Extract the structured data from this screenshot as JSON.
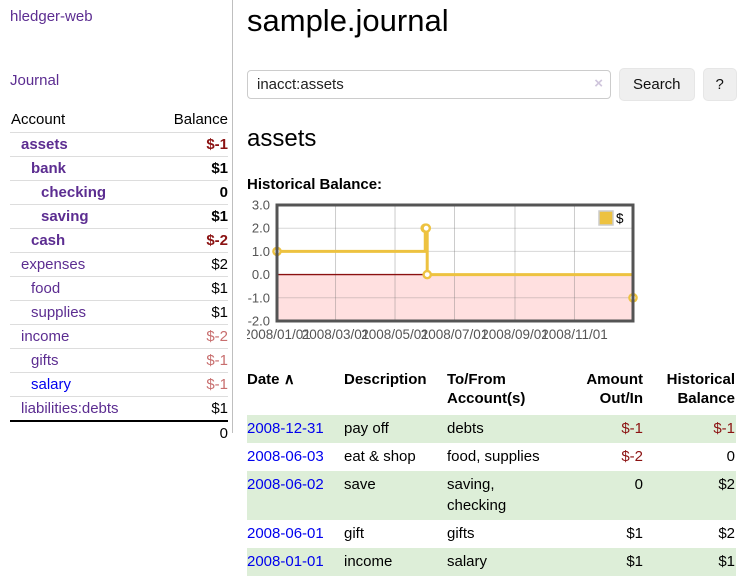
{
  "app": {
    "brand": "hledger-web"
  },
  "nav": {
    "journal": "Journal"
  },
  "sidebar": {
    "headers": {
      "account": "Account",
      "balance": "Balance"
    },
    "accounts": [
      {
        "name": "assets",
        "indent": 1,
        "bold": true,
        "link_blue": false,
        "balance": "$-1",
        "balance_class": "amt-neg"
      },
      {
        "name": "bank",
        "indent": 2,
        "bold": true,
        "link_blue": false,
        "balance": "$1",
        "balance_class": "amt-pos"
      },
      {
        "name": "checking",
        "indent": 3,
        "bold": true,
        "link_blue": false,
        "balance": "0",
        "balance_class": "amt-pos"
      },
      {
        "name": "saving",
        "indent": 3,
        "bold": true,
        "link_blue": false,
        "balance": "$1",
        "balance_class": "amt-pos"
      },
      {
        "name": "cash",
        "indent": 2,
        "bold": true,
        "link_blue": false,
        "balance": "$-2",
        "balance_class": "amt-neg"
      },
      {
        "name": "expenses",
        "indent": 1,
        "bold": false,
        "link_blue": false,
        "balance": "$2",
        "balance_class": "amt-pos"
      },
      {
        "name": "food",
        "indent": 2,
        "bold": false,
        "link_blue": false,
        "balance": "$1",
        "balance_class": "amt-pos"
      },
      {
        "name": "supplies",
        "indent": 2,
        "bold": false,
        "link_blue": false,
        "balance": "$1",
        "balance_class": "amt-pos"
      },
      {
        "name": "income",
        "indent": 1,
        "bold": false,
        "link_blue": false,
        "balance": "$-2",
        "balance_class": "amt-neg-dim"
      },
      {
        "name": "gifts",
        "indent": 2,
        "bold": false,
        "link_blue": false,
        "balance": "$-1",
        "balance_class": "amt-neg-dim"
      },
      {
        "name": "salary",
        "indent": 2,
        "bold": false,
        "link_blue": true,
        "balance": "$-1",
        "balance_class": "amt-neg-dim"
      },
      {
        "name": "liabilities:debts",
        "indent": 1,
        "bold": false,
        "link_blue": false,
        "balance": "$1",
        "balance_class": "amt-pos"
      }
    ],
    "total": "0"
  },
  "header": {
    "title": "sample.journal"
  },
  "search": {
    "value": "inacct:assets",
    "clear_icon": "×",
    "search_button": "Search",
    "help_button": "?"
  },
  "account_page": {
    "heading": "assets",
    "chart_title": "Historical Balance:"
  },
  "chart_data": {
    "type": "line",
    "step": true,
    "title": "Historical Balance:",
    "legend": {
      "label": "$",
      "color": "#edc240",
      "position": "top-right"
    },
    "x_range_days": [
      0,
      365
    ],
    "x_ticks": [
      {
        "label": "2008/01/01",
        "day": 0
      },
      {
        "label": "2008/03/01",
        "day": 60
      },
      {
        "label": "2008/05/01",
        "day": 121
      },
      {
        "label": "2008/07/01",
        "day": 182
      },
      {
        "label": "2008/09/01",
        "day": 244
      },
      {
        "label": "2008/11/01",
        "day": 305
      }
    ],
    "y_ticks": [
      {
        "label": "3.0",
        "value": 3
      },
      {
        "label": "2.0",
        "value": 2
      },
      {
        "label": "1.0",
        "value": 1
      },
      {
        "label": "0.0",
        "value": 0
      },
      {
        "label": "-1.0",
        "value": -1
      },
      {
        "label": "-2.0",
        "value": -2
      }
    ],
    "ylim": [
      -2,
      3
    ],
    "grid": true,
    "series": [
      {
        "name": "$",
        "color": "#edc240",
        "points": [
          {
            "date": "2008-01-01",
            "day": 0,
            "value": 1
          },
          {
            "date": "2008-06-01",
            "day": 152,
            "value": 2
          },
          {
            "date": "2008-06-02",
            "day": 153,
            "value": 2
          },
          {
            "date": "2008-06-03",
            "day": 154,
            "value": 0
          },
          {
            "date": "2008-12-31",
            "day": 365,
            "value": -1
          }
        ]
      }
    ],
    "negative_region_color": "#ffe0e0",
    "zero_line_color": "#8b1010",
    "border_color": "#545454",
    "tick_label_color": "#545454"
  },
  "register": {
    "headers": {
      "date": "Date",
      "sort_icon": "∧",
      "description": "Description",
      "account": "To/From Account(s)",
      "amount": "Amount Out/In",
      "balance": "Historical Balance"
    },
    "rows": [
      {
        "date": "2008-12-31",
        "description": "pay off",
        "accounts": "debts",
        "amount": "$-1",
        "amount_class": "amt-neg",
        "balance": "$-1",
        "balance_class": "amt-neg"
      },
      {
        "date": "2008-06-03",
        "description": "eat & shop",
        "accounts": "food, supplies",
        "amount": "$-2",
        "amount_class": "amt-neg",
        "balance": "0",
        "balance_class": "amt-pos"
      },
      {
        "date": "2008-06-02",
        "description": "save",
        "accounts": "saving, checking",
        "amount": "0",
        "amount_class": "amt-pos",
        "balance": "$2",
        "balance_class": "amt-pos"
      },
      {
        "date": "2008-06-01",
        "description": "gift",
        "accounts": "gifts",
        "amount": "$1",
        "amount_class": "amt-pos",
        "balance": "$2",
        "balance_class": "amt-pos"
      },
      {
        "date": "2008-01-01",
        "description": "income",
        "accounts": "salary",
        "amount": "$1",
        "amount_class": "amt-pos",
        "balance": "$1",
        "balance_class": "amt-pos"
      }
    ]
  }
}
